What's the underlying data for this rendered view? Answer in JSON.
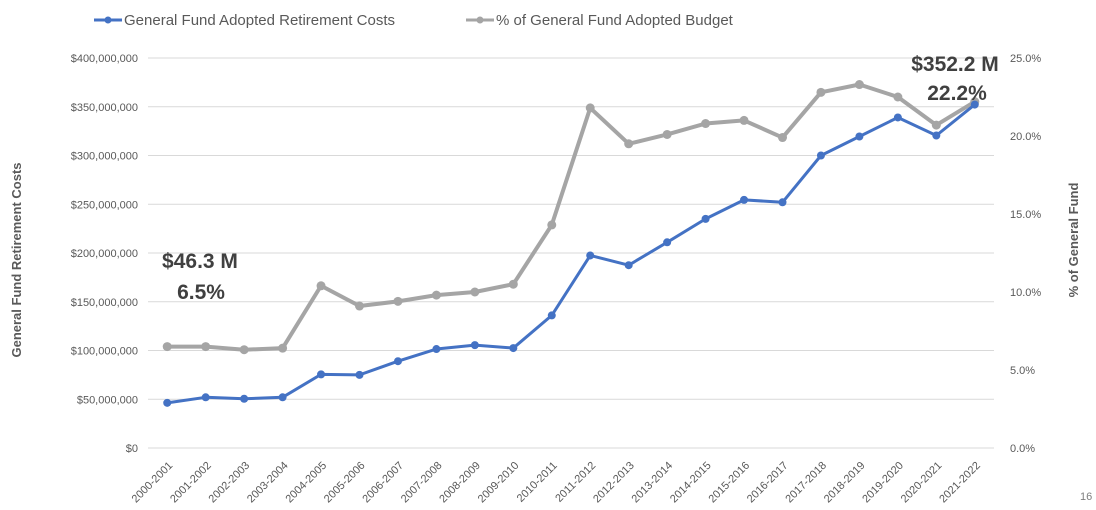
{
  "page_number": "16",
  "chart_data": {
    "type": "line",
    "title": "",
    "categories": [
      "2000-2001",
      "2001-2002",
      "2002-2003",
      "2003-2004",
      "2004-2005",
      "2005-2006",
      "2006-2007",
      "2007-2008",
      "2008-2009",
      "2009-2010",
      "2010-2011",
      "2011-2012",
      "2012-2013",
      "2013-2014",
      "2014-2015",
      "2015-2016",
      "2016-2017",
      "2017-2018",
      "2018-2019",
      "2019-2020",
      "2020-2021",
      "2021-2022"
    ],
    "xlabel": "",
    "ylabel": "General Fund Retirement Costs",
    "y2label": "% of General Fund",
    "ylim": [
      0,
      400000000
    ],
    "y2lim": [
      0,
      25
    ],
    "y_ticks": [
      "$0",
      "$50,000,000",
      "$100,000,000",
      "$150,000,000",
      "$200,000,000",
      "$250,000,000",
      "$300,000,000",
      "$350,000,000",
      "$400,000,000"
    ],
    "y2_ticks": [
      "0.0%",
      "5.0%",
      "10.0%",
      "15.0%",
      "20.0%",
      "25.0%"
    ],
    "grid": true,
    "legend_position": "top-left",
    "series": [
      {
        "name": "General Fund Adopted Retirement Costs",
        "axis": "left",
        "color": "#4472C4",
        "values": [
          46300000,
          52000000,
          50500000,
          52000000,
          75500000,
          75000000,
          89000000,
          101500000,
          105500000,
          102500000,
          136000000,
          197500000,
          187500000,
          211000000,
          235000000,
          254500000,
          252000000,
          300000000,
          319500000,
          339000000,
          320500000,
          352200000
        ]
      },
      {
        "name": "% of General Fund Adopted Budget",
        "axis": "right",
        "color": "#A5A5A5",
        "values": [
          6.5,
          6.5,
          6.3,
          6.4,
          10.4,
          9.1,
          9.4,
          9.8,
          10.0,
          10.5,
          14.3,
          21.8,
          19.5,
          20.1,
          20.8,
          21.0,
          19.9,
          22.8,
          23.3,
          22.5,
          20.7,
          22.2
        ]
      }
    ],
    "annotations": [
      {
        "id": "start-value",
        "text": "$46.3 M",
        "category": "2000-2001"
      },
      {
        "id": "start-pct",
        "text": "6.5%",
        "category": "2000-2001"
      },
      {
        "id": "end-value",
        "text": "$352.2 M",
        "category": "2021-2022"
      },
      {
        "id": "end-pct",
        "text": "22.2%",
        "category": "2021-2022"
      }
    ]
  }
}
